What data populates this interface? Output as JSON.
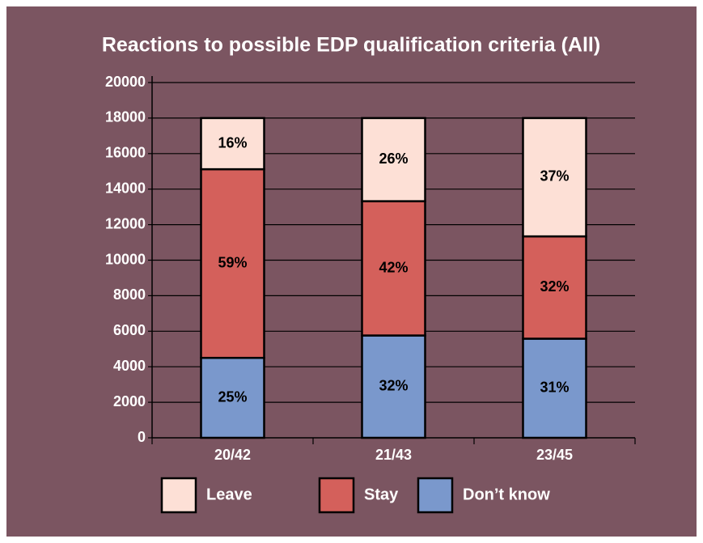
{
  "chart_data": {
    "type": "stacked_bar",
    "title": "Reactions to possible EDP qualification criteria (All)",
    "categories": [
      "20/42",
      "21/43",
      "23/45"
    ],
    "series": [
      {
        "name": "Leave",
        "color": "#fde0d6",
        "values": [
          2880,
          4680,
          6660
        ],
        "value_labels": [
          "16%",
          "26%",
          "37%"
        ]
      },
      {
        "name": "Stay",
        "color": "#d4605b",
        "values": [
          10620,
          7560,
          5760
        ],
        "value_labels": [
          "59%",
          "42%",
          "32%"
        ]
      },
      {
        "name": "Don’t know",
        "color": "#7a98cc",
        "values": [
          4500,
          5760,
          5580
        ],
        "value_labels": [
          "25%",
          "32%",
          "31%"
        ]
      }
    ],
    "ylim": [
      0,
      20000
    ],
    "yticks": [
      0,
      2000,
      4000,
      6000,
      8000,
      10000,
      12000,
      14000,
      16000,
      18000,
      20000
    ],
    "grid": true,
    "legend": "bottom"
  }
}
